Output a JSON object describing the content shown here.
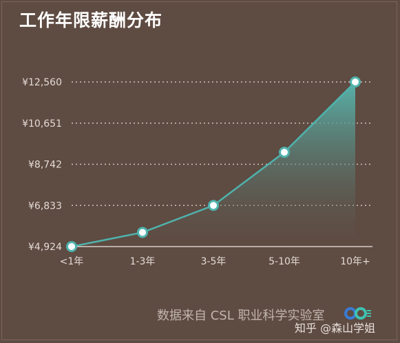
{
  "title": "工作年限薪酬分布",
  "source": "数据来自 CSL 职业科学实验室",
  "watermark": "知乎 @森山学姐",
  "colors": {
    "background": "#5e4b42",
    "line": "#4fb3ad",
    "grid": "#cfc5bf",
    "axis_text": "#e4dbd6"
  },
  "chart_data": {
    "type": "area",
    "title": "工作年限薪酬分布",
    "xlabel": "",
    "ylabel": "",
    "categories": [
      "<1年",
      "1-3年",
      "3-5年",
      "5-10年",
      "10年+"
    ],
    "values": [
      4924,
      5580,
      6833,
      9300,
      12560
    ],
    "yticks": [
      "¥4,924",
      "¥6,833",
      "¥8,742",
      "¥10,651",
      "¥12,560"
    ],
    "ytick_values": [
      4924,
      6833,
      8742,
      10651,
      12560
    ],
    "ylim": [
      4924,
      12560
    ],
    "grid": "horizontal-dotted"
  }
}
